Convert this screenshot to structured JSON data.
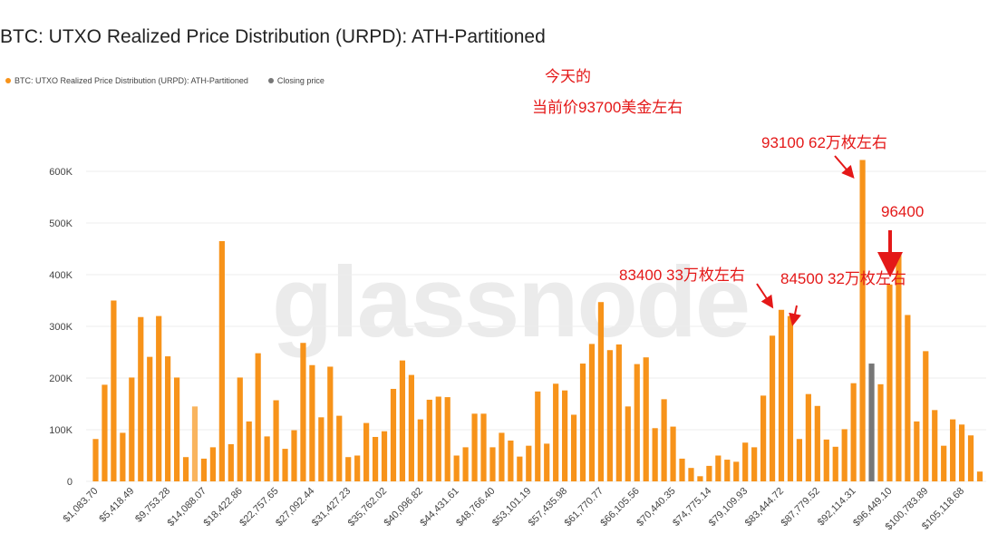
{
  "title": "BTC: UTXO Realized Price Distribution (URPD): ATH-Partitioned",
  "legend": {
    "series_label": "BTC: UTXO Realized Price Distribution (URPD): ATH-Partitioned",
    "closing_label": "Closing price"
  },
  "watermark": "glassnode",
  "colors": {
    "bar": "#f7931a",
    "light_bar": "#f9b45e",
    "closing_bar": "#777777",
    "annotation": "#e41818",
    "grid": "#eeeeee"
  },
  "annotations": {
    "today_line1": "今天的",
    "today_line2": "当前价93700美金左右",
    "peak_93100": "93100 62万枚左右",
    "label_96400": "96400",
    "label_83400": "83400 33万枚左右",
    "label_84500": "84500 32万枚左右"
  },
  "chart_data": {
    "type": "bar",
    "y_ticks": [
      "0",
      "100K",
      "200K",
      "300K",
      "400K",
      "500K",
      "600K"
    ],
    "ylim": [
      0,
      600000
    ],
    "x_tick_labels": [
      "$1,083.70",
      "$5,418.49",
      "$9,753.28",
      "$14,088.07",
      "$18,422.86",
      "$22,757.65",
      "$27,092.44",
      "$31,427.23",
      "$35,762.02",
      "$40,096.82",
      "$44,431.61",
      "$48,766.40",
      "$53,101.19",
      "$57,435.98",
      "$61,770.77",
      "$66,105.56",
      "$70,440.35",
      "$74,775.14",
      "$79,109.93",
      "$83,444.72",
      "$87,779.52",
      "$92,114.31",
      "$96,449.10",
      "$100,783.89",
      "$105,118.68"
    ],
    "values": [
      82000,
      187000,
      350000,
      94000,
      201000,
      318000,
      241000,
      320000,
      242000,
      201000,
      47000,
      145000,
      44000,
      66000,
      465000,
      72000,
      201000,
      116000,
      248000,
      87000,
      157000,
      63000,
      99000,
      268000,
      225000,
      124000,
      222000,
      127000,
      47000,
      50000,
      113000,
      86000,
      97000,
      179000,
      234000,
      206000,
      120000,
      158000,
      164000,
      163000,
      50000,
      66000,
      131000,
      131000,
      66000,
      94000,
      79000,
      48000,
      69000,
      174000,
      73000,
      189000,
      176000,
      129000,
      228000,
      266000,
      347000,
      254000,
      265000,
      145000,
      227000,
      240000,
      103000,
      159000,
      106000,
      44000,
      26000,
      10000,
      30000,
      50000,
      42000,
      38000,
      75000,
      66000,
      166000,
      282000,
      332000,
      320000,
      82000,
      169000,
      146000,
      81000,
      67000,
      101000,
      190000,
      622000,
      228000,
      188000,
      381000,
      443000,
      322000,
      116000,
      252000,
      138000,
      69000,
      120000,
      110000,
      89000,
      19000
    ],
    "light_index": 11,
    "closing_index": 86
  }
}
